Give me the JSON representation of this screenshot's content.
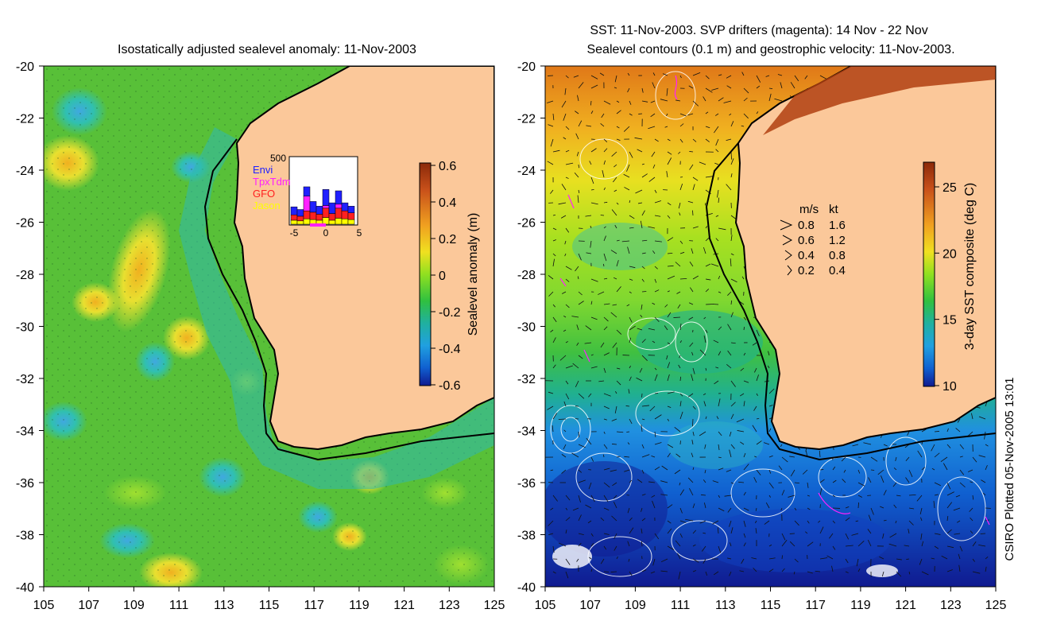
{
  "left_panel": {
    "title": "Isostatically adjusted sealevel anomaly: 11-Nov-2003",
    "x_ticks": [
      "105",
      "107",
      "109",
      "111",
      "113",
      "115",
      "117",
      "119",
      "121",
      "123",
      "125"
    ],
    "y_ticks": [
      "-20",
      "-22",
      "-24",
      "-26",
      "-28",
      "-30",
      "-32",
      "-34",
      "-36",
      "-38",
      "-40"
    ],
    "colorbar": {
      "label": "Sealevel anomaly (m)",
      "ticks": [
        "0.6",
        "0.4",
        "0.2",
        "0",
        "-0.2",
        "-0.4",
        "-0.6"
      ],
      "colors": [
        "#8b2a0a",
        "#c8501a",
        "#f0a020",
        "#f8e020",
        "#a0e020",
        "#30c040",
        "#20b0a0",
        "#20a0e0",
        "#1060d0",
        "#101a90"
      ]
    },
    "inset": {
      "max_label": "500",
      "legend": [
        {
          "name": "Envi",
          "color": "#2020ff"
        },
        {
          "name": "TpxTdm",
          "color": "#ff20ff"
        },
        {
          "name": "GFO",
          "color": "#ff2020"
        },
        {
          "name": "Jason",
          "color": "#ffff00"
        }
      ],
      "x_ticks": [
        "-5",
        "0",
        "5"
      ],
      "bars": [
        {
          "jason": 30,
          "gfo": 40,
          "tpx": 0,
          "envi": 60
        },
        {
          "jason": 25,
          "gfo": 35,
          "tpx": 0,
          "envi": 50
        },
        {
          "jason": 40,
          "gfo": 60,
          "tpx": 110,
          "envi": 70
        },
        {
          "jason": 35,
          "gfo": 55,
          "tpx": 0,
          "envi": 80
        },
        {
          "jason": 30,
          "gfo": 45,
          "tpx": 0,
          "envi": 60
        },
        {
          "jason": 50,
          "gfo": 70,
          "tpx": 20,
          "envi": 120
        },
        {
          "jason": 30,
          "gfo": 50,
          "tpx": 0,
          "envi": 80
        },
        {
          "jason": 45,
          "gfo": 75,
          "tpx": 30,
          "envi": 100
        },
        {
          "jason": 40,
          "gfo": 60,
          "tpx": 0,
          "envi": 60
        },
        {
          "jason": 35,
          "gfo": 50,
          "tpx": 0,
          "envi": 50
        }
      ]
    }
  },
  "right_panel": {
    "title_line1": "SST: 11-Nov-2003. SVP drifters (magenta): 14 Nov - 22 Nov",
    "title_line2": "Sealevel contours (0.1 m) and geostrophic velocity: 11-Nov-2003.",
    "x_ticks": [
      "105",
      "107",
      "109",
      "111",
      "113",
      "115",
      "117",
      "119",
      "121",
      "123",
      "125"
    ],
    "y_ticks": [
      "-20",
      "-22",
      "-24",
      "-26",
      "-28",
      "-30",
      "-32",
      "-34",
      "-36",
      "-38",
      "-40"
    ],
    "colorbar": {
      "label": "3-day SST composite (deg C)",
      "ticks": [
        "25",
        "20",
        "15",
        "10"
      ],
      "colors": [
        "#8b2a0a",
        "#c8501a",
        "#f0a020",
        "#f8e020",
        "#a0e020",
        "#30c040",
        "#20b0a0",
        "#20a0e0",
        "#1060d0",
        "#101a90"
      ]
    },
    "velocity_legend": {
      "header_ms": "m/s",
      "header_kt": "kt",
      "rows": [
        {
          "ms": "0.8",
          "kt": "1.6"
        },
        {
          "ms": "0.6",
          "kt": "1.2"
        },
        {
          "ms": "0.4",
          "kt": "0.8"
        },
        {
          "ms": "0.2",
          "kt": "0.4"
        }
      ]
    }
  },
  "credit": "CSIRO Plotted 05-Nov-2005 13:01",
  "colors": {
    "land": "#fbc89a",
    "ocean_green": "#58c038",
    "coast": "#000000"
  }
}
